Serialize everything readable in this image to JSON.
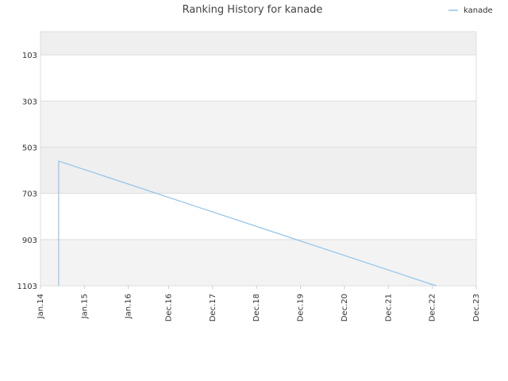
{
  "chart_data": {
    "type": "line",
    "title": "Ranking History for kanade",
    "xlabel": "",
    "ylabel": "",
    "y_inverted": true,
    "ylim": [
      3,
      1103
    ],
    "xlim": [
      "2014-01-01",
      "2023-12-01"
    ],
    "y_ticks": [
      103,
      303,
      503,
      703,
      903,
      1103
    ],
    "x_ticks": [
      {
        "date": "2014-01-01",
        "label": "Jan.14"
      },
      {
        "date": "2015-01-01",
        "label": "Jan.15"
      },
      {
        "date": "2016-01-01",
        "label": "Jan.16"
      },
      {
        "date": "2016-12-01",
        "label": "Dec.16"
      },
      {
        "date": "2017-12-01",
        "label": "Dec.17"
      },
      {
        "date": "2018-12-01",
        "label": "Dec.18"
      },
      {
        "date": "2019-12-01",
        "label": "Dec.19"
      },
      {
        "date": "2020-12-01",
        "label": "Dec.20"
      },
      {
        "date": "2021-12-01",
        "label": "Dec.21"
      },
      {
        "date": "2022-12-01",
        "label": "Dec.22"
      },
      {
        "date": "2023-12-01",
        "label": "Dec.23"
      }
    ],
    "grid": true,
    "band_colors": [
      "#efefef",
      "#ffffff",
      "#f3f3f3"
    ],
    "legend": "top-right",
    "series": [
      {
        "name": "kanade",
        "color": "#90c4ec",
        "points": [
          {
            "x": "2014-06-01",
            "y": 1103
          },
          {
            "x": "2014-06-01",
            "y": 563
          },
          {
            "x": "2023-01-01",
            "y": 1103
          }
        ]
      }
    ]
  }
}
